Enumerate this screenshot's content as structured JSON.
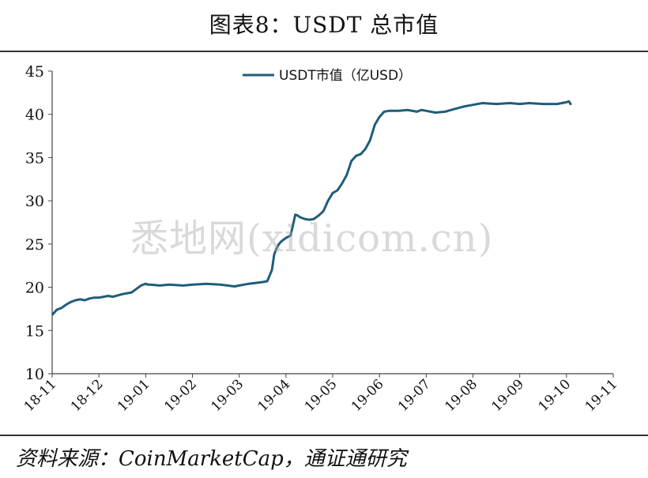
{
  "title": "图表8：USDT 总市值",
  "source": "资料来源：CoinMarketCap，通证通研究",
  "watermark": "悉地网(xidicom.cn)",
  "colors": {
    "series": "#1f5d7a",
    "axis": "#444444",
    "text": "#111111"
  },
  "chart_data": {
    "type": "line",
    "title": "",
    "xlabel": "",
    "ylabel": "",
    "ylim": [
      10,
      45
    ],
    "yticks": [
      10,
      15,
      20,
      25,
      30,
      35,
      40,
      45
    ],
    "xticks": [
      "18-11",
      "18-12",
      "19-01",
      "19-02",
      "19-03",
      "19-04",
      "19-05",
      "19-06",
      "19-07",
      "19-08",
      "19-09",
      "19-10",
      "19-11"
    ],
    "grid": false,
    "legend": "top-center",
    "series": [
      {
        "name": "USDT市值（亿USD）",
        "x": [
          0,
          0.1,
          0.2,
          0.3,
          0.4,
          0.5,
          0.6,
          0.7,
          0.8,
          0.9,
          1.0,
          1.1,
          1.2,
          1.3,
          1.5,
          1.7,
          1.9,
          2.0,
          2.05,
          2.1,
          2.3,
          2.5,
          2.8,
          3.0,
          3.3,
          3.6,
          3.9,
          4.0,
          4.2,
          4.5,
          4.6,
          4.7,
          4.75,
          4.8,
          4.85,
          4.9,
          5.0,
          5.1,
          5.2,
          5.25,
          5.3,
          5.4,
          5.5,
          5.6,
          5.7,
          5.8,
          5.9,
          6.0,
          6.1,
          6.2,
          6.3,
          6.4,
          6.5,
          6.6,
          6.7,
          6.8,
          6.9,
          7.0,
          7.1,
          7.2,
          7.4,
          7.6,
          7.8,
          7.9,
          8.0,
          8.2,
          8.4,
          8.6,
          8.8,
          9.0,
          9.2,
          9.5,
          9.8,
          10.0,
          10.2,
          10.5,
          10.8,
          11.0,
          11.05,
          11.1
        ],
        "y": [
          16.8,
          17.4,
          17.6,
          18.0,
          18.3,
          18.5,
          18.6,
          18.5,
          18.7,
          18.8,
          18.8,
          18.9,
          19.0,
          18.9,
          19.2,
          19.4,
          20.2,
          20.4,
          20.3,
          20.3,
          20.2,
          20.3,
          20.2,
          20.3,
          20.4,
          20.3,
          20.1,
          20.2,
          20.4,
          20.6,
          20.7,
          22.0,
          23.8,
          24.5,
          25.0,
          25.3,
          25.7,
          26.0,
          28.4,
          28.3,
          28.1,
          27.9,
          27.8,
          27.9,
          28.3,
          28.8,
          30.0,
          30.9,
          31.2,
          32.0,
          33.0,
          34.6,
          35.2,
          35.4,
          36.0,
          37.0,
          38.8,
          39.7,
          40.3,
          40.4,
          40.4,
          40.5,
          40.3,
          40.5,
          40.4,
          40.2,
          40.3,
          40.6,
          40.9,
          41.1,
          41.3,
          41.2,
          41.3,
          41.2,
          41.3,
          41.2,
          41.2,
          41.4,
          41.5,
          41.1
        ]
      }
    ]
  }
}
